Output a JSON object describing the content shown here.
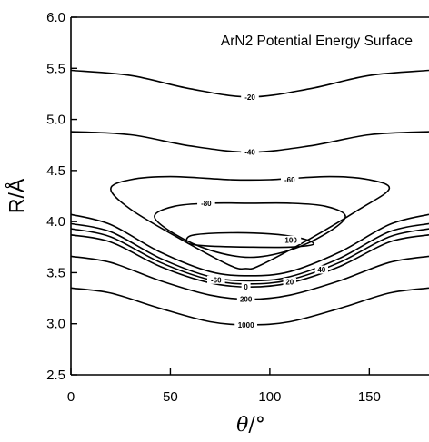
{
  "chart_data": {
    "type": "contour",
    "title": "ArN2 Potential Energy Surface",
    "xlabel_symbol": "θ",
    "xlabel_unit": "/°",
    "ylabel_symbol": "R",
    "ylabel_unit": "/Å",
    "xlim": [
      0,
      180
    ],
    "ylim": [
      2.5,
      6.0
    ],
    "x_ticks": [
      0,
      50,
      100,
      150
    ],
    "y_ticks": [
      2.5,
      3.0,
      3.5,
      4.0,
      4.5,
      5.0,
      5.5,
      6.0
    ],
    "x_tick_labels": [
      "0",
      "50",
      "100",
      "150"
    ],
    "y_tick_labels": [
      "2.5",
      "3.0",
      "3.5",
      "4.0",
      "4.5",
      "5.0",
      "5.5",
      "6.0"
    ],
    "contours": [
      {
        "level": "1000",
        "label": "1000",
        "closed": false,
        "points": [
          [
            0,
            3.35
          ],
          [
            20,
            3.3
          ],
          [
            45,
            3.15
          ],
          [
            70,
            3.02
          ],
          [
            90,
            2.99
          ],
          [
            110,
            3.02
          ],
          [
            135,
            3.15
          ],
          [
            160,
            3.3
          ],
          [
            180,
            3.35
          ]
        ],
        "label_at": [
          88,
          2.99
        ]
      },
      {
        "level": "200",
        "label": "200",
        "closed": false,
        "points": [
          [
            0,
            3.66
          ],
          [
            20,
            3.6
          ],
          [
            45,
            3.42
          ],
          [
            70,
            3.28
          ],
          [
            90,
            3.24
          ],
          [
            110,
            3.28
          ],
          [
            135,
            3.42
          ],
          [
            160,
            3.6
          ],
          [
            180,
            3.66
          ]
        ],
        "label_at": [
          88,
          3.24
        ]
      },
      {
        "level": "0",
        "label": "0",
        "closed": false,
        "points": [
          [
            0,
            3.87
          ],
          [
            20,
            3.8
          ],
          [
            45,
            3.56
          ],
          [
            70,
            3.4
          ],
          [
            90,
            3.36
          ],
          [
            110,
            3.4
          ],
          [
            135,
            3.56
          ],
          [
            160,
            3.8
          ],
          [
            180,
            3.87
          ]
        ],
        "label_at": [
          88,
          3.36
        ]
      },
      {
        "level": "20",
        "label": "20",
        "closed": false,
        "points": [
          [
            0,
            3.93
          ],
          [
            20,
            3.85
          ],
          [
            45,
            3.6
          ],
          [
            70,
            3.43
          ],
          [
            90,
            3.39
          ],
          [
            110,
            3.43
          ],
          [
            135,
            3.6
          ],
          [
            160,
            3.85
          ],
          [
            180,
            3.93
          ]
        ],
        "label_at": [
          110,
          3.41
        ]
      },
      {
        "level": "40",
        "label": "40",
        "closed": false,
        "points": [
          [
            0,
            3.98
          ],
          [
            20,
            3.9
          ],
          [
            45,
            3.64
          ],
          [
            70,
            3.46
          ],
          [
            90,
            3.42
          ],
          [
            110,
            3.46
          ],
          [
            135,
            3.64
          ],
          [
            160,
            3.9
          ],
          [
            180,
            3.98
          ]
        ],
        "label_at": [
          126,
          3.53
        ]
      },
      {
        "level": "-60",
        "label": "-60",
        "closed": false,
        "points": [
          [
            0,
            4.07
          ],
          [
            20,
            3.97
          ],
          [
            45,
            3.7
          ],
          [
            70,
            3.51
          ],
          [
            90,
            3.47
          ],
          [
            110,
            3.51
          ],
          [
            135,
            3.7
          ],
          [
            160,
            3.97
          ],
          [
            180,
            4.07
          ]
        ],
        "label_at": [
          73,
          3.43
        ]
      },
      {
        "level": "-20",
        "label": "-20",
        "closed": false,
        "points": [
          [
            0,
            5.48
          ],
          [
            30,
            5.43
          ],
          [
            60,
            5.3
          ],
          [
            90,
            5.22
          ],
          [
            120,
            5.3
          ],
          [
            150,
            5.43
          ],
          [
            180,
            5.48
          ]
        ],
        "label_at": [
          90,
          5.22
        ]
      },
      {
        "level": "-40",
        "label": "-40",
        "closed": false,
        "points": [
          [
            0,
            4.88
          ],
          [
            30,
            4.85
          ],
          [
            60,
            4.74
          ],
          [
            90,
            4.68
          ],
          [
            120,
            4.74
          ],
          [
            150,
            4.85
          ],
          [
            180,
            4.88
          ]
        ],
        "label_at": [
          90,
          4.68
        ]
      },
      {
        "level": "-60",
        "label": "-60",
        "closed": true,
        "points": [
          [
            20,
            4.32
          ],
          [
            30,
            4.41
          ],
          [
            50,
            4.44
          ],
          [
            80,
            4.41
          ],
          [
            100,
            4.41
          ],
          [
            130,
            4.44
          ],
          [
            150,
            4.41
          ],
          [
            160,
            4.32
          ],
          [
            145,
            4.12
          ],
          [
            120,
            3.83
          ],
          [
            95,
            3.57
          ],
          [
            88,
            3.54
          ],
          [
            80,
            3.57
          ],
          [
            55,
            3.83
          ],
          [
            30,
            4.12
          ]
        ],
        "label_at": [
          110,
          4.41
        ]
      },
      {
        "level": "-80",
        "label": "-80",
        "closed": true,
        "points": [
          [
            42,
            4.05
          ],
          [
            52,
            4.15
          ],
          [
            70,
            4.18
          ],
          [
            90,
            4.18
          ],
          [
            110,
            4.18
          ],
          [
            128,
            4.15
          ],
          [
            138,
            4.05
          ],
          [
            128,
            3.88
          ],
          [
            110,
            3.72
          ],
          [
            90,
            3.65
          ],
          [
            70,
            3.72
          ],
          [
            52,
            3.88
          ]
        ],
        "label_at": [
          68,
          4.18
        ]
      },
      {
        "level": "-100",
        "label": "-100",
        "closed": true,
        "points": [
          [
            58,
            3.82
          ],
          [
            62,
            3.87
          ],
          [
            80,
            3.89
          ],
          [
            100,
            3.88
          ],
          [
            115,
            3.84
          ],
          [
            122,
            3.78
          ],
          [
            110,
            3.75
          ],
          [
            90,
            3.75
          ],
          [
            70,
            3.76
          ],
          [
            60,
            3.78
          ]
        ],
        "label_at": [
          110,
          3.82
        ]
      }
    ]
  }
}
